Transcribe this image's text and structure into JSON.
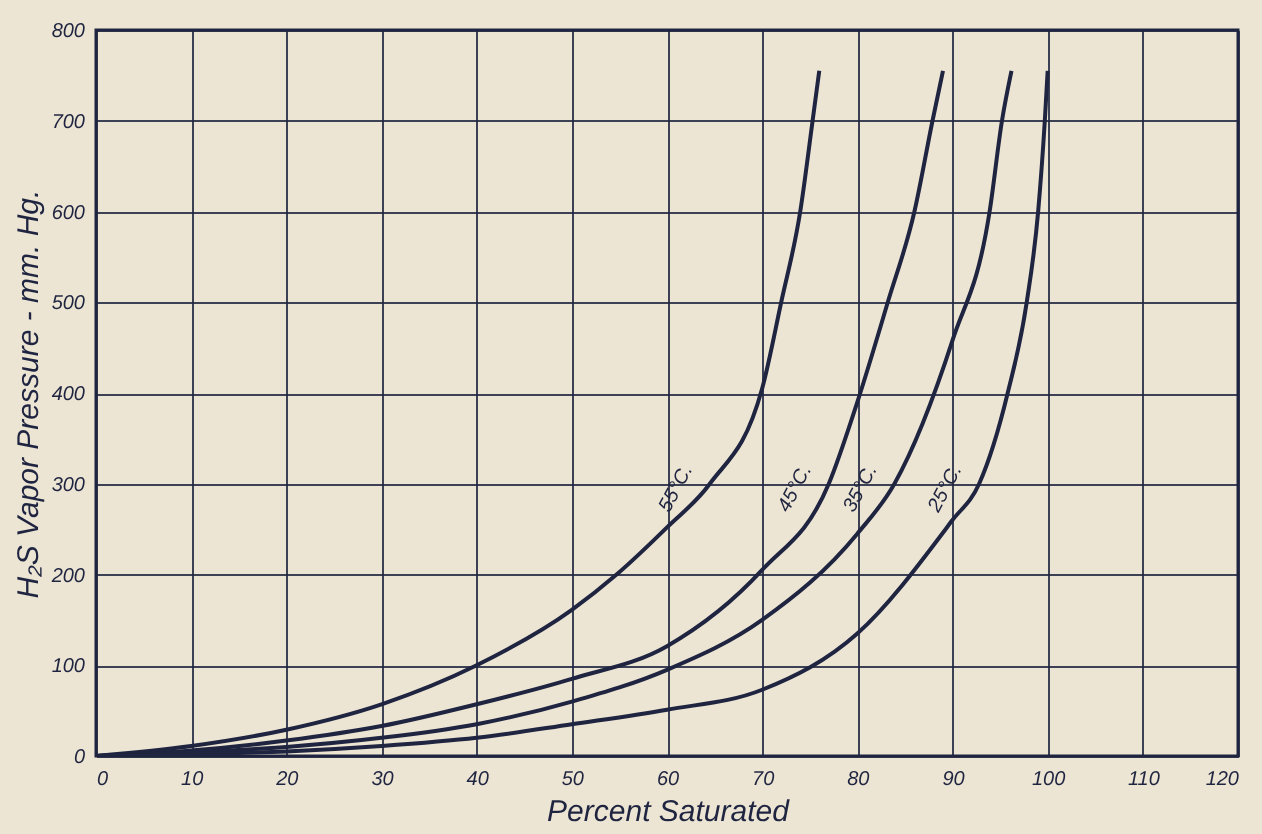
{
  "chart_data": {
    "type": "line",
    "xlabel": "Percent Saturated",
    "ylabel": "H₂S Vapor Pressure - mm. Hg.",
    "xlim": [
      0,
      120
    ],
    "ylim": [
      0,
      800
    ],
    "xticks": [
      0,
      10,
      20,
      30,
      40,
      50,
      60,
      70,
      80,
      90,
      100,
      110,
      120
    ],
    "yticks": [
      0,
      100,
      200,
      300,
      400,
      500,
      600,
      700,
      800
    ],
    "grid": true,
    "series": [
      {
        "color": "#1f2440",
        "x": [
          0,
          10,
          20,
          30,
          40,
          50,
          54.7,
          60,
          64.5,
          70,
          72,
          74,
          75.3,
          76
        ],
        "values": [
          0,
          11,
          29,
          57,
          100,
          161,
          200,
          252,
          300,
          405,
          500,
          600,
          700,
          755
        ]
      },
      {
        "color": "#1f2440",
        "x": [
          0,
          10,
          20,
          30,
          40,
          50,
          60,
          70,
          77,
          80,
          83.2,
          86,
          87.9,
          89
        ],
        "values": [
          0,
          6,
          17,
          33,
          57,
          85,
          121,
          205,
          300,
          390,
          500,
          600,
          700,
          755
        ]
      },
      {
        "color": "#1f2440",
        "x": [
          0,
          10,
          20,
          30,
          40,
          50,
          60,
          70,
          80,
          83.9,
          90,
          93.9,
          95.2,
          96.2
        ],
        "values": [
          0,
          4,
          10,
          20,
          35,
          60,
          95,
          150,
          245,
          300,
          458,
          600,
          700,
          755
        ]
      },
      {
        "color": "#1f2440",
        "x": [
          0,
          10,
          20,
          30,
          40,
          50,
          60,
          70,
          80,
          90,
          92.8,
          95.8,
          97.8,
          99,
          99.7,
          100
        ],
        "values": [
          0,
          2,
          5,
          11,
          20,
          35,
          51,
          73,
          135,
          260,
          300,
          400,
          500,
          600,
          700,
          755
        ]
      }
    ],
    "annotations": [
      {
        "text": "55°C.",
        "x": 64.5,
        "y": 300
      },
      {
        "text": "45°C.",
        "x": 77,
        "y": 300
      },
      {
        "text": "35°C.",
        "x": 83.9,
        "y": 300
      },
      {
        "text": "25°C.",
        "x": 92.8,
        "y": 300
      }
    ]
  }
}
